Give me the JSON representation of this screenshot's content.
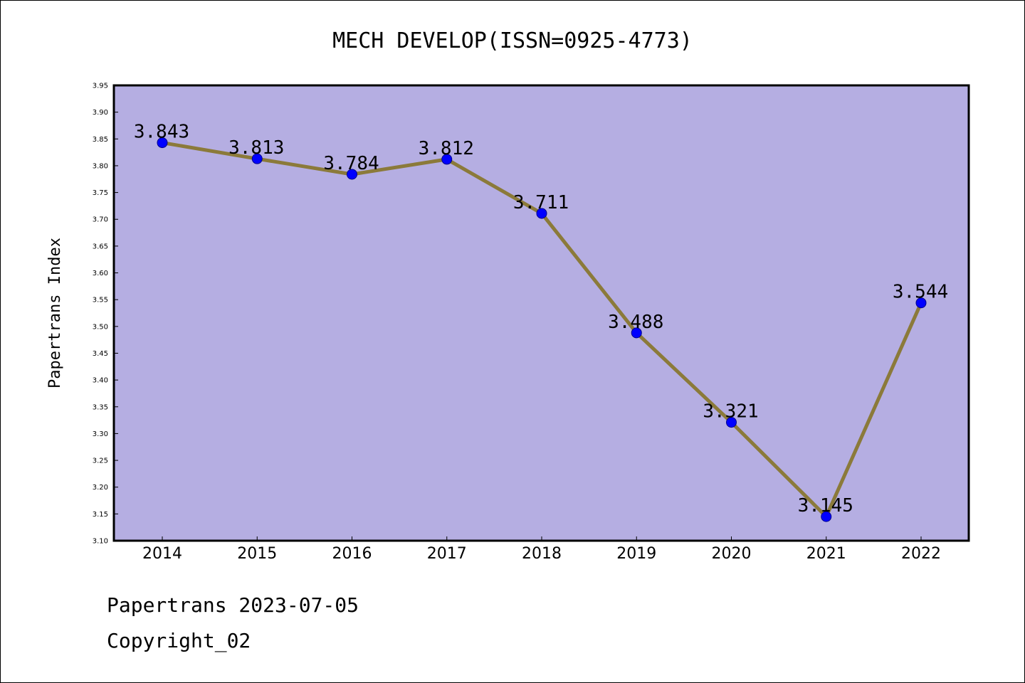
{
  "footer": {
    "line1": "Papertrans 2023-07-05",
    "line2": "Copyright_02"
  },
  "chart_data": {
    "type": "line",
    "title": "MECH DEVELOP(ISSN=0925-4773)",
    "xlabel": "",
    "ylabel": "Papertrans Index",
    "categories": [
      "2014",
      "2015",
      "2016",
      "2017",
      "2018",
      "2019",
      "2020",
      "2021",
      "2022"
    ],
    "values": [
      3.843,
      3.813,
      3.784,
      3.812,
      3.711,
      3.488,
      3.321,
      3.145,
      3.544
    ],
    "data_labels": [
      "3.843",
      "3.813",
      "3.784",
      "3.812",
      "3.711",
      "3.488",
      "3.321",
      "3.145",
      "3.544"
    ],
    "ylim": [
      3.1,
      3.95
    ],
    "yticks": [
      "3.10",
      "3.15",
      "3.20",
      "3.25",
      "3.30",
      "3.35",
      "3.40",
      "3.45",
      "3.50",
      "3.55",
      "3.60",
      "3.65",
      "3.70",
      "3.75",
      "3.80",
      "3.85",
      "3.90",
      "3.95"
    ],
    "grid": false,
    "colors": {
      "plot_background": "#b5aee2",
      "line": "#8b7a3a",
      "marker": "#0000ff",
      "marker_edge": "#00008b"
    }
  }
}
